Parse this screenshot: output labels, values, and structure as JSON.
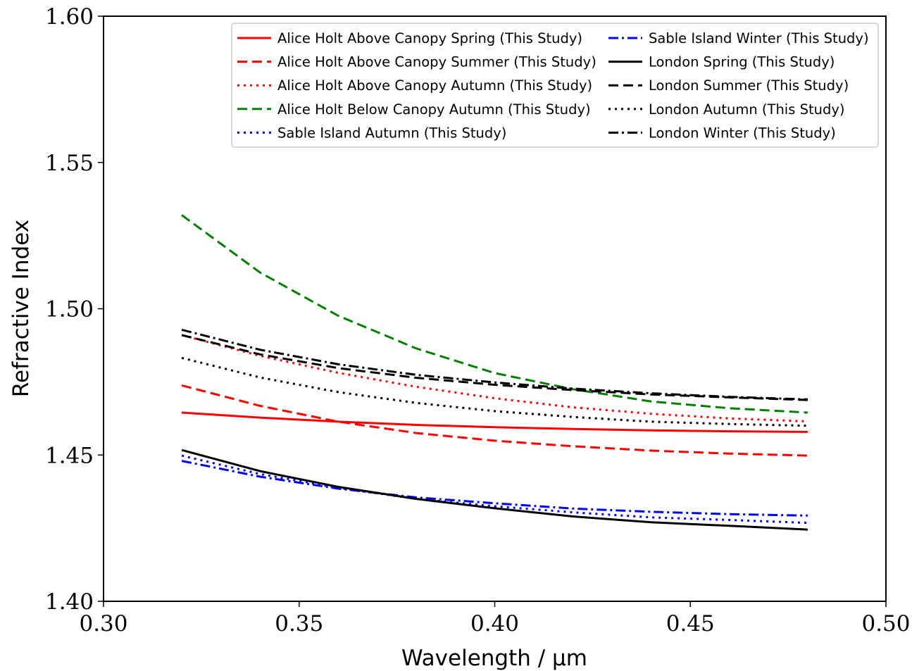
{
  "chart_data": {
    "type": "line",
    "title": "",
    "xlabel": "Wavelength / μm",
    "ylabel": "Refractive Index",
    "xlim": [
      0.3,
      0.5
    ],
    "ylim": [
      1.4,
      1.6
    ],
    "x_ticks": [
      "0.30",
      "0.35",
      "0.40",
      "0.45",
      "0.50"
    ],
    "y_ticks": [
      "1.40",
      "1.45",
      "1.50",
      "1.55",
      "1.60"
    ],
    "grid": false,
    "legend_position": "top-right",
    "legend_columns": 2,
    "x": [
      0.32,
      0.34,
      0.36,
      0.38,
      0.4,
      0.42,
      0.44,
      0.46,
      0.48
    ],
    "series": [
      {
        "name": "Alice Holt Above Canopy Spring (This Study)",
        "color": "#ff0000",
        "dash": "solid",
        "values": [
          1.4645,
          1.4628,
          1.4614,
          1.4603,
          1.4595,
          1.4589,
          1.4584,
          1.4581,
          1.4579
        ]
      },
      {
        "name": "Alice Holt Above Canopy Summer (This Study)",
        "color": "#ff0000",
        "dash": "dashed",
        "values": [
          1.4738,
          1.4668,
          1.4614,
          1.4575,
          1.4549,
          1.453,
          1.4515,
          1.4505,
          1.4498
        ]
      },
      {
        "name": "Alice Holt Above Canopy Autumn (This Study)",
        "color": "#ff0000",
        "dash": "dotted",
        "values": [
          1.491,
          1.4839,
          1.4781,
          1.4733,
          1.4694,
          1.4663,
          1.4641,
          1.4625,
          1.4615
        ]
      },
      {
        "name": "Alice Holt Below Canopy Autumn (This Study)",
        "color": "#008000",
        "dash": "dashed",
        "values": [
          1.532,
          1.5124,
          1.4976,
          1.4864,
          1.478,
          1.4725,
          1.4683,
          1.466,
          1.4645
        ]
      },
      {
        "name": "Sable Island Autumn (This Study)",
        "color": "#0000ff",
        "dash": "dotted",
        "values": [
          1.4498,
          1.4435,
          1.4388,
          1.435,
          1.4325,
          1.4304,
          1.4287,
          1.4278,
          1.4268
        ]
      },
      {
        "name": "Sable Island Winter (This Study)",
        "color": "#0000ff",
        "dash": "dashdot",
        "values": [
          1.448,
          1.4426,
          1.4385,
          1.4355,
          1.4335,
          1.4317,
          1.4306,
          1.4298,
          1.4293
        ]
      },
      {
        "name": "London Spring (This Study)",
        "color": "#000000",
        "dash": "solid",
        "values": [
          1.4517,
          1.4445,
          1.4391,
          1.435,
          1.4318,
          1.429,
          1.427,
          1.4258,
          1.4245
        ]
      },
      {
        "name": "London Summer (This Study)",
        "color": "#000000",
        "dash": "dashed",
        "values": [
          1.491,
          1.4844,
          1.4797,
          1.4764,
          1.474,
          1.4722,
          1.4707,
          1.4697,
          1.4688
        ]
      },
      {
        "name": "London Autumn (This Study)",
        "color": "#000000",
        "dash": "dotted",
        "values": [
          1.4832,
          1.4765,
          1.4715,
          1.4678,
          1.465,
          1.463,
          1.4614,
          1.4606,
          1.46
        ]
      },
      {
        "name": "London Winter (This Study)",
        "color": "#000000",
        "dash": "dashdot",
        "values": [
          1.4928,
          1.486,
          1.481,
          1.4774,
          1.4748,
          1.4727,
          1.4711,
          1.4699,
          1.469
        ]
      }
    ]
  }
}
